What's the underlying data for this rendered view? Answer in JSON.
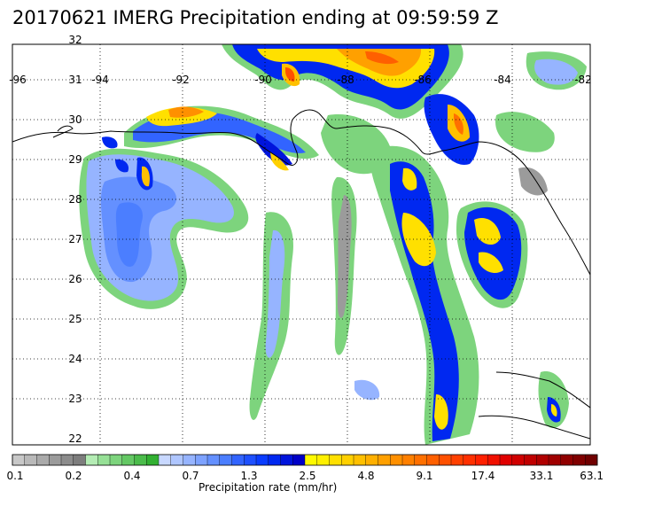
{
  "title": "20170621 IMERG Precipitation ending at 09:59:59 Z",
  "map": {
    "longitudes": [
      "-96",
      "-94",
      "-92",
      "-90",
      "-88",
      "-86",
      "-84",
      "-82"
    ],
    "latitudes": [
      "32",
      "31",
      "30",
      "29",
      "28",
      "27",
      "26",
      "25",
      "24",
      "23",
      "22"
    ],
    "lon_range": [
      -96,
      -82
    ],
    "lat_range": [
      22,
      32
    ],
    "grid": "dotted"
  },
  "colorbar": {
    "title": "Precipitation rate (mm/hr)",
    "tick_labels": [
      "0.1",
      "0.2",
      "0.4",
      "0.7",
      "1.3",
      "2.5",
      "4.8",
      "9.1",
      "17.4",
      "33.1",
      "63.1"
    ],
    "colors": [
      "#c8c8c8",
      "#b9b9b9",
      "#aaaaaa",
      "#9b9b9b",
      "#8c8c8c",
      "#7d7d7d",
      "#b4ecb4",
      "#96e096",
      "#7dd47d",
      "#64c864",
      "#4bbc4b",
      "#32b032",
      "#c8d8ff",
      "#afc6ff",
      "#96b4ff",
      "#7da2ff",
      "#6490ff",
      "#4b7eff",
      "#3264ff",
      "#1e50ff",
      "#0a3cff",
      "#0028f0",
      "#0014dc",
      "#0000c8",
      "#fffa00",
      "#fff000",
      "#ffe000",
      "#ffd000",
      "#ffc000",
      "#ffb000",
      "#ffa000",
      "#ff9000",
      "#ff8000",
      "#ff7000",
      "#ff6000",
      "#ff5000",
      "#ff4000",
      "#ff3000",
      "#ff2000",
      "#f01000",
      "#e00000",
      "#d00000",
      "#c00000",
      "#b00000",
      "#a00000",
      "#900000",
      "#800000",
      "#700000"
    ]
  }
}
